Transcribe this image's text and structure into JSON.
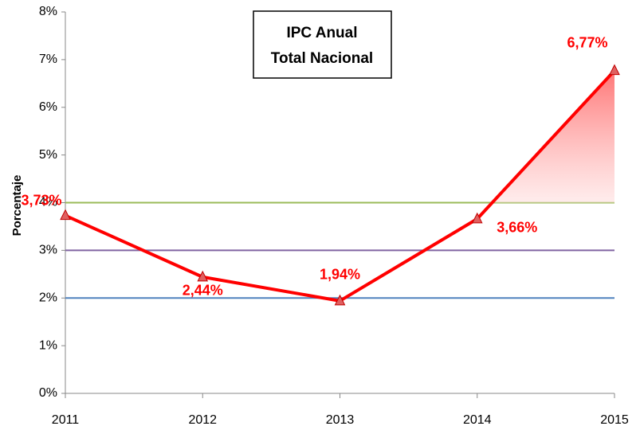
{
  "chart_data": {
    "type": "line",
    "title": [
      "IPC Anual",
      "Total Nacional"
    ],
    "ylabel": "Porcentaje",
    "categories": [
      "2011",
      "2012",
      "2013",
      "2014",
      "2015"
    ],
    "series": [
      {
        "name": "IPC",
        "color": "#ff0000",
        "values": [
          3.73,
          2.44,
          1.94,
          3.66,
          6.77
        ],
        "value_labels": [
          "3,73%",
          "2,44%",
          "1,94%",
          "3,66%",
          "6,77%"
        ]
      }
    ],
    "reference_lines": [
      {
        "value": 2,
        "color": "#4f81bd"
      },
      {
        "value": 3,
        "color": "#8064a2"
      },
      {
        "value": 4,
        "color": "#9bbb59"
      }
    ],
    "ylim": [
      0,
      8
    ],
    "yticks": [
      {
        "value": 0,
        "label": "0%"
      },
      {
        "value": 1,
        "label": "1%"
      },
      {
        "value": 2,
        "label": "2%"
      },
      {
        "value": 3,
        "label": "3%"
      },
      {
        "value": 4,
        "label": "4%"
      },
      {
        "value": 5,
        "label": "5%"
      },
      {
        "value": 6,
        "label": "6%"
      },
      {
        "value": 7,
        "label": "7%"
      },
      {
        "value": 8,
        "label": "8%"
      }
    ]
  }
}
